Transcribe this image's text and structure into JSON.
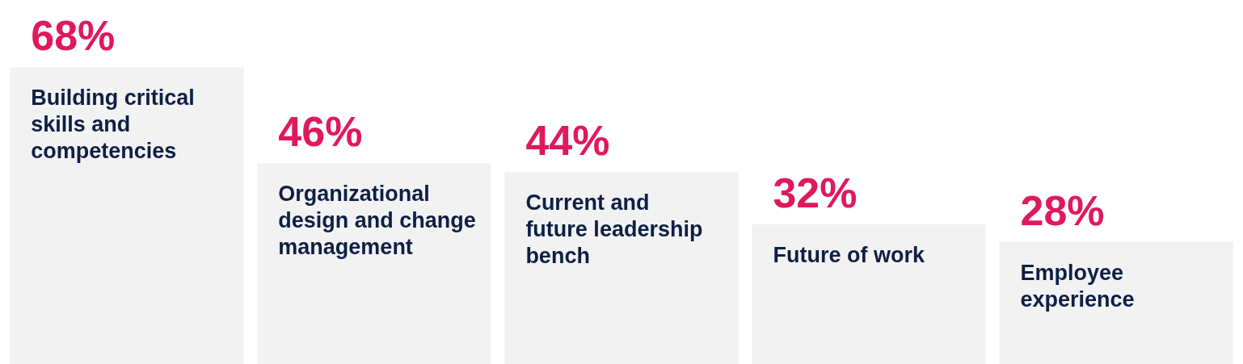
{
  "chart_data": {
    "type": "bar",
    "categories": [
      "Building critical skills and competencies",
      "Organizational design and change management",
      "Current and future leadership bench",
      "Future of work",
      "Employee experience"
    ],
    "values": [
      68,
      46,
      44,
      32,
      28
    ],
    "value_labels": [
      "68%",
      "46%",
      "44%",
      "32%",
      "28%"
    ],
    "color": "#f2f2f2"
  }
}
